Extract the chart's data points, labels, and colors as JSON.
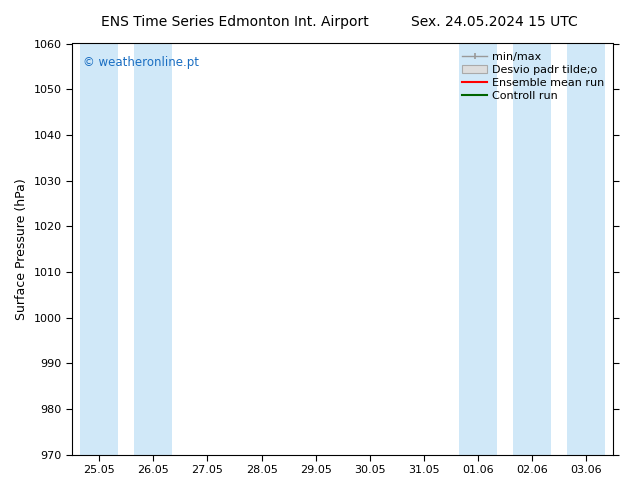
{
  "title_left": "ENS Time Series Edmonton Int. Airport",
  "title_right": "Sex. 24.05.2024 15 UTC",
  "ylabel": "Surface Pressure (hPa)",
  "ylim": [
    970,
    1060
  ],
  "yticks": [
    970,
    980,
    990,
    1000,
    1010,
    1020,
    1030,
    1040,
    1050,
    1060
  ],
  "xtick_labels": [
    "25.05",
    "26.05",
    "27.05",
    "28.05",
    "29.05",
    "30.05",
    "31.05",
    "01.06",
    "02.06",
    "03.06"
  ],
  "shade_color": "#d0e8f8",
  "watermark": "© weatheronline.pt",
  "watermark_color": "#1a6ec2",
  "bg_color": "#ffffff",
  "title_fontsize": 10,
  "axis_label_fontsize": 9,
  "legend_fontsize": 8
}
